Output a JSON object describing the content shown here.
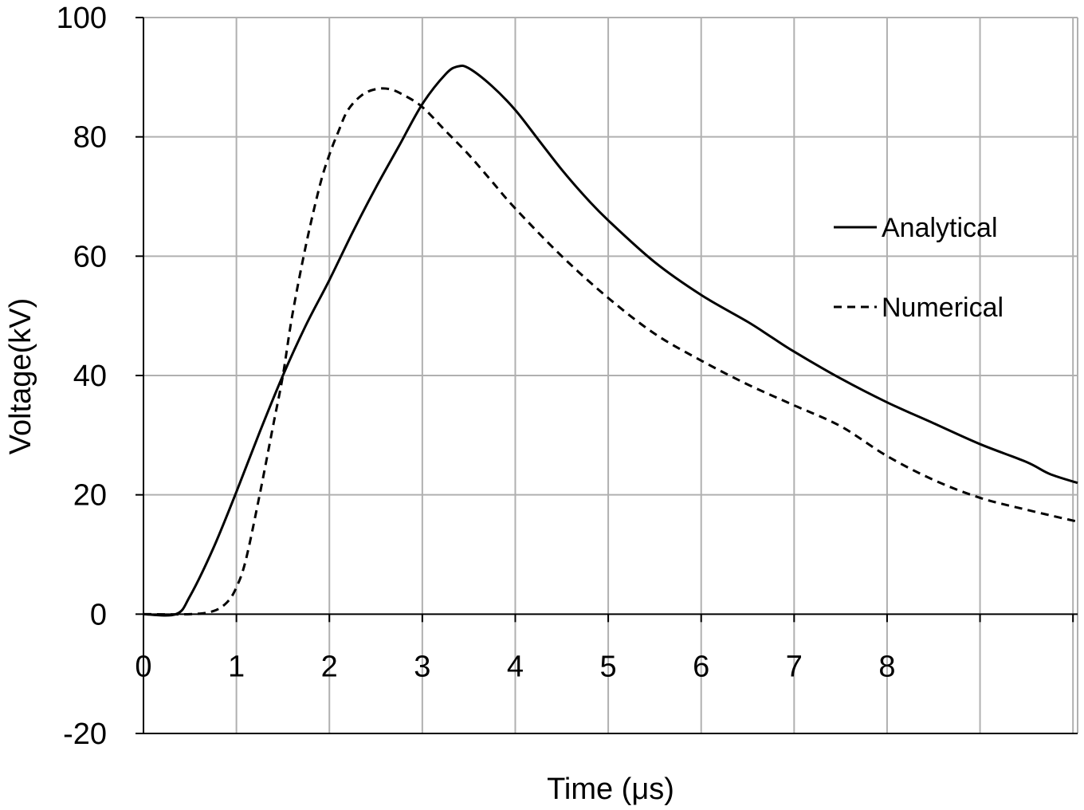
{
  "chart_data": {
    "type": "line",
    "xlabel": "Time (μs)",
    "ylabel": "Voltage(kV)",
    "xlim": [
      0,
      10.05
    ],
    "ylim": [
      -20,
      100
    ],
    "x_ticks": [
      0,
      1,
      2,
      3,
      4,
      5,
      6,
      7,
      8
    ],
    "x_gridlines": [
      0,
      1,
      2,
      3,
      4,
      5,
      6,
      7,
      8,
      9,
      10
    ],
    "y_ticks": [
      -20,
      0,
      20,
      40,
      60,
      80,
      100
    ],
    "grid": true,
    "legend_position": "right",
    "series": [
      {
        "name": "Analytical",
        "style": "solid",
        "x": [
          0,
          0.35,
          0.5,
          0.75,
          1.0,
          1.25,
          1.5,
          1.75,
          2.0,
          2.25,
          2.5,
          2.75,
          3.0,
          3.25,
          3.38,
          3.5,
          3.75,
          4.0,
          4.25,
          4.5,
          4.75,
          5.0,
          5.5,
          6.0,
          6.5,
          6.75,
          7.0,
          7.5,
          8.0,
          8.5,
          9.0,
          9.5,
          9.75,
          10.05
        ],
        "y": [
          0,
          0,
          3,
          11,
          20.5,
          30.5,
          40,
          48.5,
          56,
          64,
          71.5,
          78.5,
          85.5,
          90.5,
          91.8,
          91.5,
          88.5,
          84.5,
          79.5,
          74.5,
          70,
          66,
          59,
          53.5,
          49,
          46.5,
          44,
          39.5,
          35.5,
          32,
          28.5,
          25.5,
          23.5,
          22
        ]
      },
      {
        "name": "Numerical",
        "style": "dashed",
        "x": [
          0,
          0.5,
          0.75,
          0.9,
          1.0,
          1.1,
          1.25,
          1.4,
          1.5,
          1.6,
          1.75,
          1.9,
          2.0,
          2.1,
          2.2,
          2.35,
          2.5,
          2.65,
          2.8,
          3.0,
          3.25,
          3.5,
          3.75,
          4.0,
          4.5,
          5.0,
          5.5,
          6.0,
          6.5,
          7.0,
          7.5,
          8.0,
          8.5,
          9.0,
          9.5,
          10.05
        ],
        "y": [
          0,
          0,
          0.5,
          2,
          4.5,
          9,
          20,
          32,
          40,
          50,
          62,
          72,
          77,
          81,
          84.5,
          87,
          88,
          88,
          87,
          85,
          81,
          77,
          72.5,
          68,
          60,
          53,
          47,
          42.5,
          38.5,
          35,
          31.5,
          26.5,
          22.5,
          19.5,
          17.5,
          15.5
        ]
      }
    ]
  }
}
